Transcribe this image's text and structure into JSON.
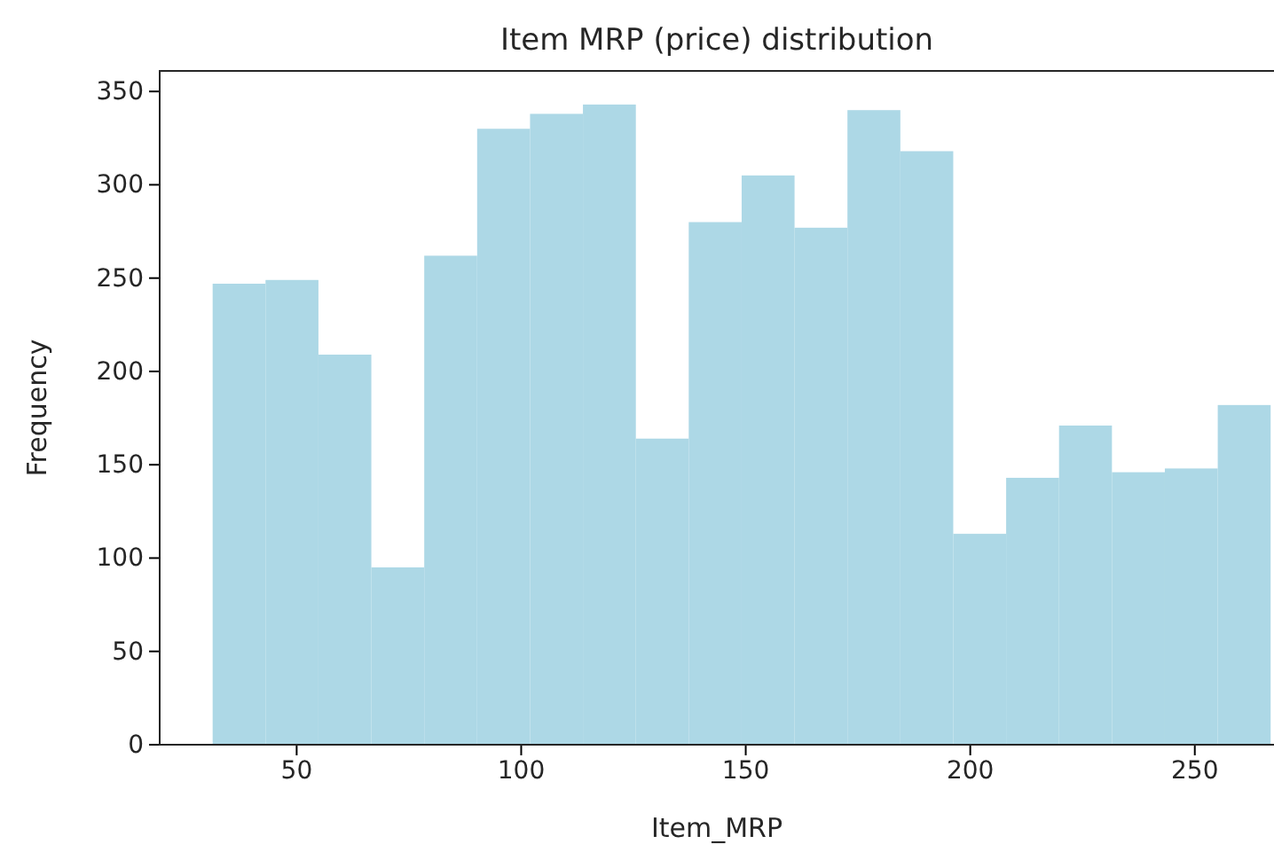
{
  "chart_data": {
    "type": "histogram",
    "title": "Item MRP (price) distribution",
    "xlabel": "Item_MRP",
    "ylabel": "Frequency",
    "bins": [
      31.29,
      43.07,
      54.85,
      66.63,
      78.41,
      90.19,
      101.97,
      113.75,
      125.53,
      137.31,
      149.09,
      160.87,
      172.65,
      184.43,
      196.21,
      207.99,
      219.77,
      231.55,
      243.33,
      255.11,
      266.89
    ],
    "values": [
      247,
      249,
      209,
      95,
      262,
      330,
      338,
      343,
      164,
      280,
      305,
      277,
      340,
      318,
      113,
      143,
      171,
      146,
      148,
      182
    ],
    "color": "#add8e6",
    "xlim": [
      19.5,
      278.7
    ],
    "xticks": [
      50,
      100,
      150,
      200,
      250
    ],
    "ylim": [
      0,
      361
    ],
    "yticks": [
      0,
      50,
      100,
      150,
      200,
      250,
      300,
      350
    ],
    "grid": false
  }
}
